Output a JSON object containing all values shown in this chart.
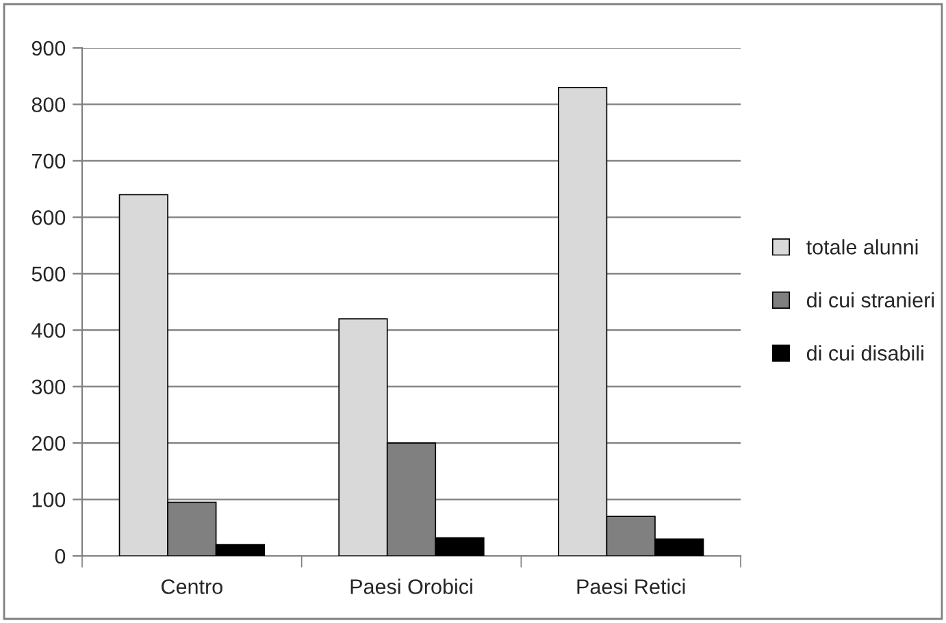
{
  "chart_data": {
    "type": "bar",
    "categories": [
      "Centro",
      "Paesi Orobici",
      "Paesi Retici"
    ],
    "series": [
      {
        "name": "totale alunni",
        "color": "#d9d9d9",
        "values": [
          640,
          420,
          830
        ]
      },
      {
        "name": "di cui stranieri",
        "color": "#808080",
        "values": [
          95,
          200,
          70
        ]
      },
      {
        "name": "di cui disabili",
        "color": "#000000",
        "values": [
          20,
          32,
          30
        ]
      }
    ],
    "ylim": [
      0,
      900
    ],
    "yticks": [
      0,
      100,
      200,
      300,
      400,
      500,
      600,
      700,
      800,
      900
    ],
    "grid": "y",
    "legend": "right"
  }
}
